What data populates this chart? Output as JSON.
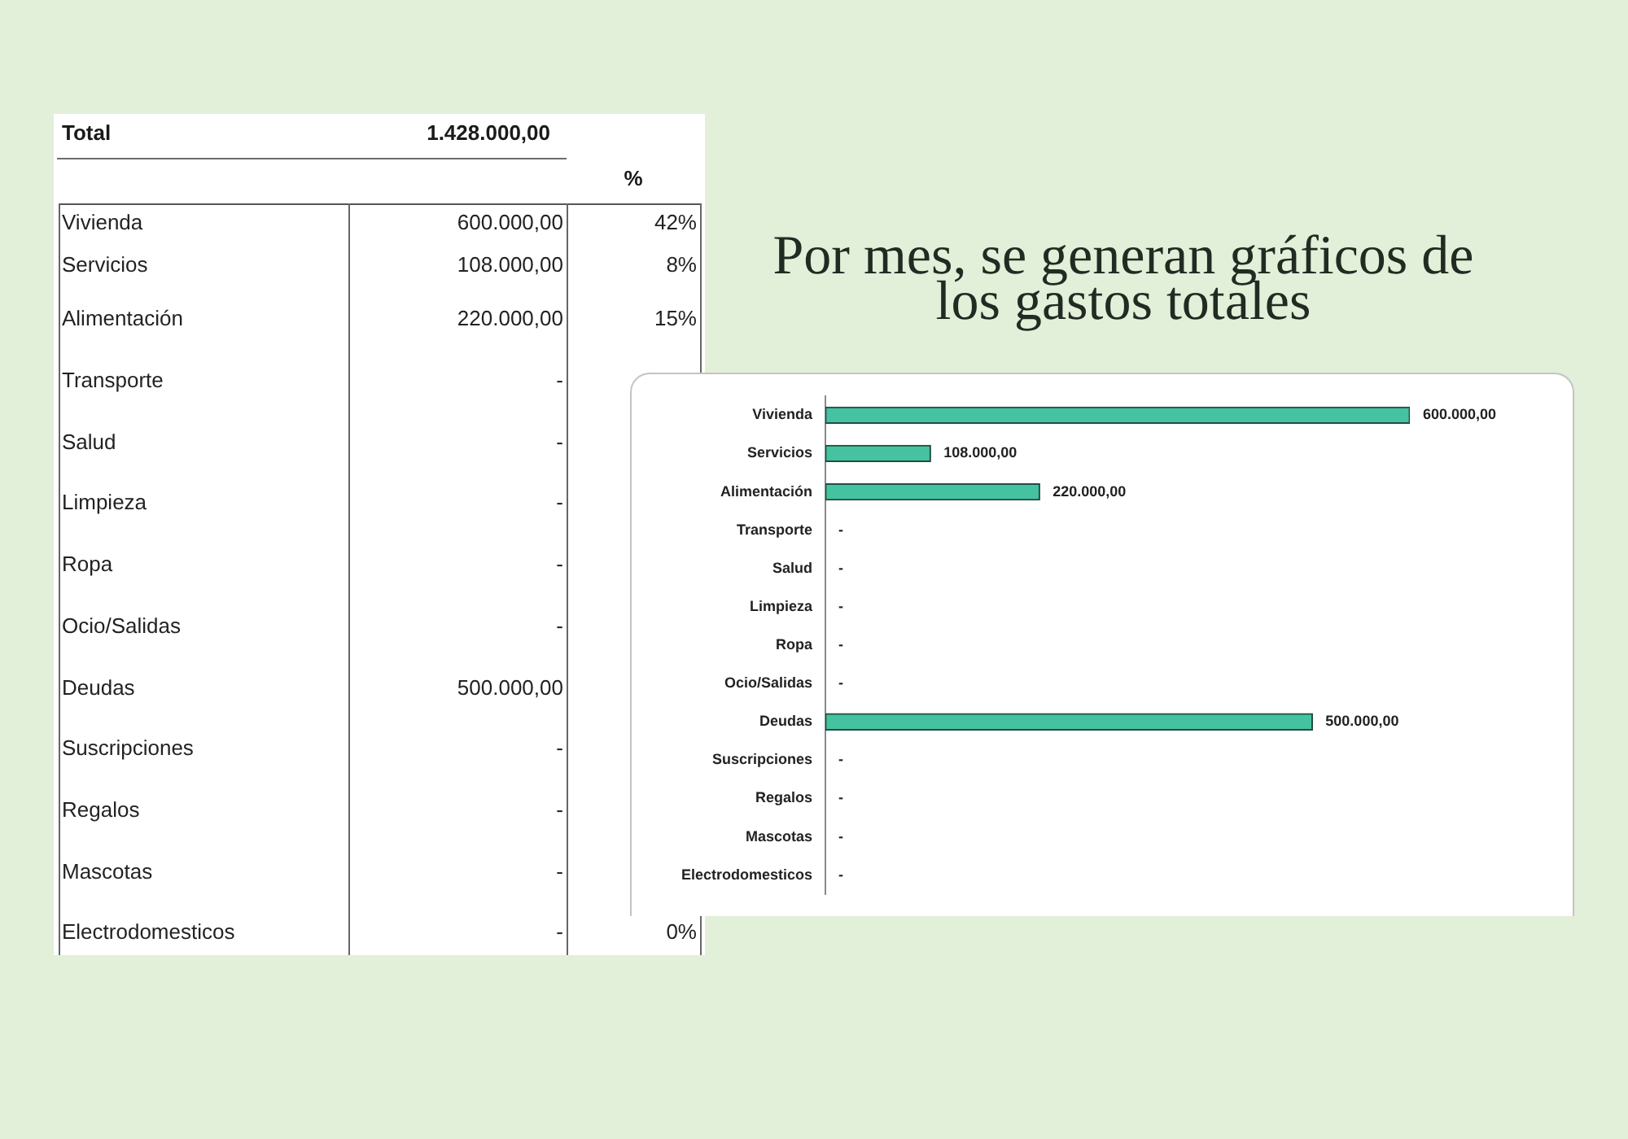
{
  "chart_data": [
    {
      "type": "other",
      "categories": [
        "Vivienda",
        "Servicios",
        "Alimentación",
        "Transporte",
        "Salud",
        "Limpieza",
        "Ropa",
        "Ocio/Salidas",
        "Deudas",
        "Suscripciones",
        "Regalos",
        "Mascotas",
        "Electrodomesticos"
      ],
      "series": [
        {
          "values": [
            null,
            null,
            null,
            null,
            null,
            null,
            null,
            null,
            null,
            null,
            null,
            null,
            null
          ],
          "value_labels": [
            "600.000,00",
            "108.000,00",
            "220.000,00",
            "-",
            "-",
            "-",
            "-",
            "-",
            "500.000,00",
            "-",
            "-",
            "-",
            "-"
          ]
        },
        {
          "name": "%",
          "values": [
            null,
            null,
            null,
            null,
            null,
            null,
            null,
            null,
            null,
            null,
            null,
            null,
            null
          ],
          "value_labels": [
            "42%",
            "8%",
            "15%",
            null,
            null,
            null,
            null,
            null,
            null,
            null,
            null,
            null,
            "0%"
          ]
        }
      ],
      "annotations": [
        "Total",
        "1.428.000,00"
      ]
    },
    {
      "type": "bar",
      "orientation": "horizontal",
      "title": "Por mes, se generan gráficos de los gastos totales",
      "categories": [
        "Vivienda",
        "Servicios",
        "Alimentación",
        "Transporte",
        "Salud",
        "Limpieza",
        "Ropa",
        "Ocio/Salidas",
        "Deudas",
        "Suscripciones",
        "Regalos",
        "Mascotas",
        "Electrodomesticos"
      ],
      "values": [
        600000,
        108000,
        220000,
        0,
        0,
        0,
        0,
        0,
        500000,
        0,
        0,
        0,
        0
      ],
      "value_labels": [
        "600.000,00",
        "108.000,00",
        "220.000,00",
        "-",
        "-",
        "-",
        "-",
        "-",
        "500.000,00",
        "-",
        "-",
        "-",
        "-"
      ],
      "color": "#45c3a0",
      "tick_labels": "y"
    }
  ]
}
